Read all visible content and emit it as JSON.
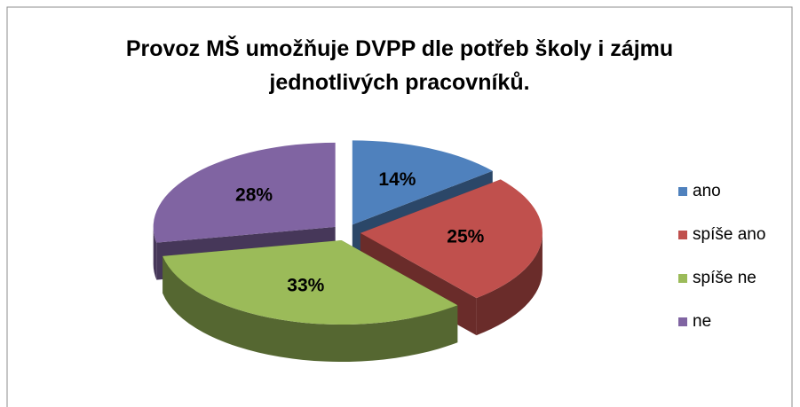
{
  "chart_data": {
    "type": "pie3d",
    "title": "Provoz MŠ umožňuje DVPP dle potřeb školy i zájmu jednotlivých pracovníků.",
    "categories": [
      "ano",
      "spíše ano",
      "spíše ne",
      "ne"
    ],
    "values": [
      14,
      25,
      33,
      28
    ],
    "value_labels": [
      "14%",
      "25%",
      "33%",
      "28%"
    ],
    "colors": [
      "#4f81bd",
      "#c0504d",
      "#9bbb59",
      "#8064a2"
    ],
    "legend": "right"
  }
}
